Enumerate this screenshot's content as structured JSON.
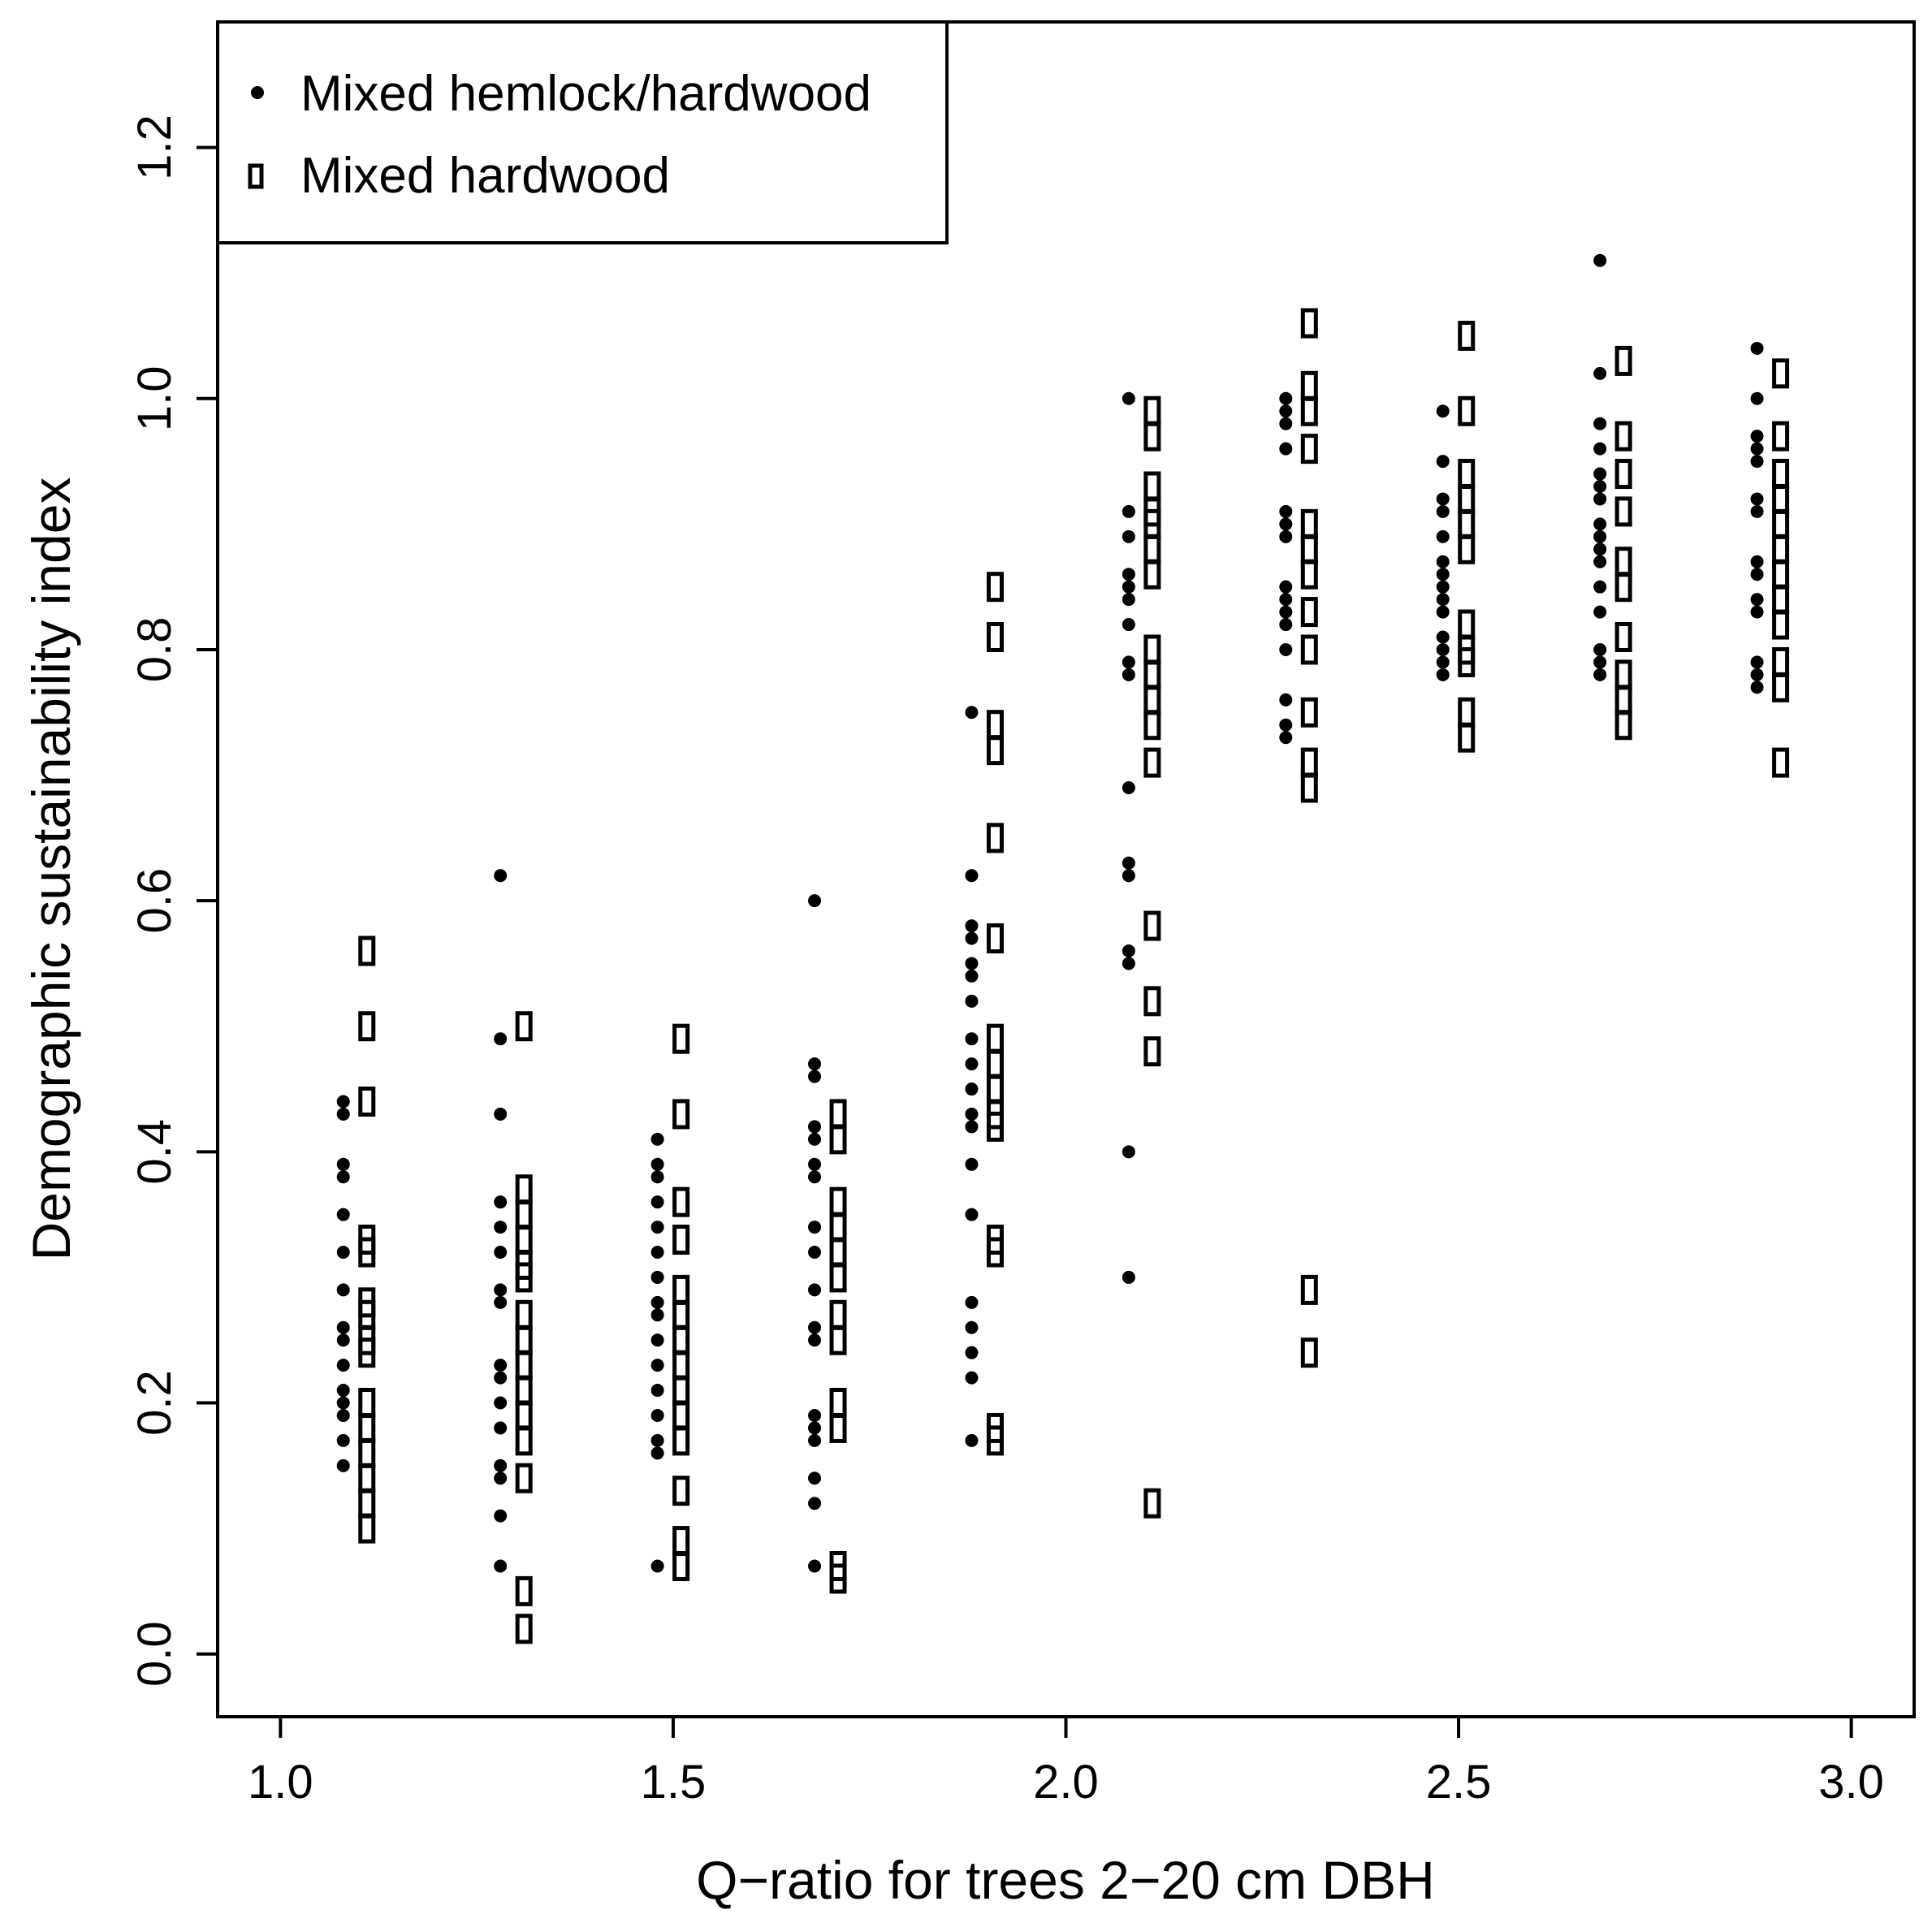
{
  "chart_data": {
    "type": "scatter",
    "title": "",
    "xlabel": "Q−ratio for trees 2−20 cm DBH",
    "ylabel": "Demographic sustainability index",
    "xlim": [
      0.92,
      3.08
    ],
    "ylim": [
      -0.05,
      1.3
    ],
    "x_ticks": [
      1.0,
      1.5,
      2.0,
      2.5,
      3.0
    ],
    "x_tick_labels": [
      "1.0",
      "1.5",
      "2.0",
      "2.5",
      "3.0"
    ],
    "y_ticks": [
      0.0,
      0.2,
      0.4,
      0.6,
      0.8,
      1.0,
      1.2
    ],
    "y_tick_labels": [
      "0.0",
      "0.2",
      "0.4",
      "0.6",
      "0.8",
      "1.0",
      "1.2"
    ],
    "grid": false,
    "legend": {
      "position": "top-left"
    },
    "series": [
      {
        "name": "Mixed hemlock/hardwood",
        "marker": "filled-circle",
        "color": "#000000",
        "points": [
          [
            1.08,
            0.44
          ],
          [
            1.08,
            0.43
          ],
          [
            1.08,
            0.39
          ],
          [
            1.08,
            0.38
          ],
          [
            1.08,
            0.35
          ],
          [
            1.08,
            0.32
          ],
          [
            1.08,
            0.29
          ],
          [
            1.08,
            0.26
          ],
          [
            1.08,
            0.25
          ],
          [
            1.08,
            0.23
          ],
          [
            1.08,
            0.21
          ],
          [
            1.08,
            0.2
          ],
          [
            1.08,
            0.19
          ],
          [
            1.08,
            0.17
          ],
          [
            1.08,
            0.15
          ],
          [
            1.28,
            0.62
          ],
          [
            1.28,
            0.49
          ],
          [
            1.28,
            0.43
          ],
          [
            1.28,
            0.36
          ],
          [
            1.28,
            0.34
          ],
          [
            1.28,
            0.32
          ],
          [
            1.28,
            0.29
          ],
          [
            1.28,
            0.28
          ],
          [
            1.28,
            0.23
          ],
          [
            1.28,
            0.22
          ],
          [
            1.28,
            0.2
          ],
          [
            1.28,
            0.18
          ],
          [
            1.28,
            0.15
          ],
          [
            1.28,
            0.14
          ],
          [
            1.28,
            0.11
          ],
          [
            1.28,
            0.07
          ],
          [
            1.48,
            0.41
          ],
          [
            1.48,
            0.39
          ],
          [
            1.48,
            0.38
          ],
          [
            1.48,
            0.36
          ],
          [
            1.48,
            0.34
          ],
          [
            1.48,
            0.32
          ],
          [
            1.48,
            0.3
          ],
          [
            1.48,
            0.28
          ],
          [
            1.48,
            0.27
          ],
          [
            1.48,
            0.25
          ],
          [
            1.48,
            0.23
          ],
          [
            1.48,
            0.21
          ],
          [
            1.48,
            0.19
          ],
          [
            1.48,
            0.17
          ],
          [
            1.48,
            0.16
          ],
          [
            1.48,
            0.07
          ],
          [
            1.68,
            0.6
          ],
          [
            1.68,
            0.47
          ],
          [
            1.68,
            0.46
          ],
          [
            1.68,
            0.42
          ],
          [
            1.68,
            0.41
          ],
          [
            1.68,
            0.39
          ],
          [
            1.68,
            0.38
          ],
          [
            1.68,
            0.34
          ],
          [
            1.68,
            0.32
          ],
          [
            1.68,
            0.29
          ],
          [
            1.68,
            0.26
          ],
          [
            1.68,
            0.25
          ],
          [
            1.68,
            0.19
          ],
          [
            1.68,
            0.18
          ],
          [
            1.68,
            0.17
          ],
          [
            1.68,
            0.14
          ],
          [
            1.68,
            0.12
          ],
          [
            1.68,
            0.07
          ],
          [
            1.88,
            0.75
          ],
          [
            1.88,
            0.62
          ],
          [
            1.88,
            0.58
          ],
          [
            1.88,
            0.57
          ],
          [
            1.88,
            0.55
          ],
          [
            1.88,
            0.54
          ],
          [
            1.88,
            0.52
          ],
          [
            1.88,
            0.49
          ],
          [
            1.88,
            0.47
          ],
          [
            1.88,
            0.45
          ],
          [
            1.88,
            0.43
          ],
          [
            1.88,
            0.42
          ],
          [
            1.88,
            0.39
          ],
          [
            1.88,
            0.35
          ],
          [
            1.88,
            0.28
          ],
          [
            1.88,
            0.26
          ],
          [
            1.88,
            0.24
          ],
          [
            1.88,
            0.22
          ],
          [
            1.88,
            0.17
          ],
          [
            2.08,
            1.0
          ],
          [
            2.08,
            0.91
          ],
          [
            2.08,
            0.89
          ],
          [
            2.08,
            0.86
          ],
          [
            2.08,
            0.85
          ],
          [
            2.08,
            0.84
          ],
          [
            2.08,
            0.82
          ],
          [
            2.08,
            0.79
          ],
          [
            2.08,
            0.78
          ],
          [
            2.08,
            0.69
          ],
          [
            2.08,
            0.63
          ],
          [
            2.08,
            0.62
          ],
          [
            2.08,
            0.56
          ],
          [
            2.08,
            0.55
          ],
          [
            2.08,
            0.4
          ],
          [
            2.08,
            0.3
          ],
          [
            2.28,
            1.0
          ],
          [
            2.28,
            0.99
          ],
          [
            2.28,
            0.98
          ],
          [
            2.28,
            0.96
          ],
          [
            2.28,
            0.91
          ],
          [
            2.28,
            0.9
          ],
          [
            2.28,
            0.89
          ],
          [
            2.28,
            0.85
          ],
          [
            2.28,
            0.84
          ],
          [
            2.28,
            0.83
          ],
          [
            2.28,
            0.82
          ],
          [
            2.28,
            0.8
          ],
          [
            2.28,
            0.76
          ],
          [
            2.28,
            0.74
          ],
          [
            2.28,
            0.73
          ],
          [
            2.48,
            0.99
          ],
          [
            2.48,
            0.95
          ],
          [
            2.48,
            0.92
          ],
          [
            2.48,
            0.91
          ],
          [
            2.48,
            0.89
          ],
          [
            2.48,
            0.87
          ],
          [
            2.48,
            0.86
          ],
          [
            2.48,
            0.85
          ],
          [
            2.48,
            0.84
          ],
          [
            2.48,
            0.83
          ],
          [
            2.48,
            0.81
          ],
          [
            2.48,
            0.8
          ],
          [
            2.48,
            0.79
          ],
          [
            2.48,
            0.78
          ],
          [
            2.68,
            1.11
          ],
          [
            2.68,
            1.02
          ],
          [
            2.68,
            0.98
          ],
          [
            2.68,
            0.96
          ],
          [
            2.68,
            0.94
          ],
          [
            2.68,
            0.93
          ],
          [
            2.68,
            0.92
          ],
          [
            2.68,
            0.9
          ],
          [
            2.68,
            0.89
          ],
          [
            2.68,
            0.88
          ],
          [
            2.68,
            0.87
          ],
          [
            2.68,
            0.85
          ],
          [
            2.68,
            0.83
          ],
          [
            2.68,
            0.8
          ],
          [
            2.68,
            0.79
          ],
          [
            2.68,
            0.78
          ],
          [
            2.88,
            1.04
          ],
          [
            2.88,
            1.0
          ],
          [
            2.88,
            0.97
          ],
          [
            2.88,
            0.96
          ],
          [
            2.88,
            0.95
          ],
          [
            2.88,
            0.92
          ],
          [
            2.88,
            0.91
          ],
          [
            2.88,
            0.87
          ],
          [
            2.88,
            0.86
          ],
          [
            2.88,
            0.84
          ],
          [
            2.88,
            0.83
          ],
          [
            2.88,
            0.79
          ],
          [
            2.88,
            0.78
          ],
          [
            2.88,
            0.77
          ]
        ]
      },
      {
        "name": "Mixed hardwood",
        "marker": "open-rectangle",
        "color": "#000000",
        "points": [
          [
            1.11,
            0.56
          ],
          [
            1.11,
            0.5
          ],
          [
            1.11,
            0.44
          ],
          [
            1.11,
            0.33
          ],
          [
            1.11,
            0.32
          ],
          [
            1.11,
            0.28
          ],
          [
            1.11,
            0.27
          ],
          [
            1.11,
            0.25
          ],
          [
            1.11,
            0.24
          ],
          [
            1.11,
            0.2
          ],
          [
            1.11,
            0.18
          ],
          [
            1.11,
            0.16
          ],
          [
            1.11,
            0.14
          ],
          [
            1.11,
            0.12
          ],
          [
            1.11,
            0.1
          ],
          [
            1.31,
            0.5
          ],
          [
            1.31,
            0.37
          ],
          [
            1.31,
            0.35
          ],
          [
            1.31,
            0.33
          ],
          [
            1.31,
            0.31
          ],
          [
            1.31,
            0.3
          ],
          [
            1.31,
            0.27
          ],
          [
            1.31,
            0.25
          ],
          [
            1.31,
            0.23
          ],
          [
            1.31,
            0.21
          ],
          [
            1.31,
            0.19
          ],
          [
            1.31,
            0.17
          ],
          [
            1.31,
            0.14
          ],
          [
            1.31,
            0.05
          ],
          [
            1.31,
            0.02
          ],
          [
            1.51,
            0.49
          ],
          [
            1.51,
            0.43
          ],
          [
            1.51,
            0.36
          ],
          [
            1.51,
            0.33
          ],
          [
            1.51,
            0.29
          ],
          [
            1.51,
            0.27
          ],
          [
            1.51,
            0.25
          ],
          [
            1.51,
            0.23
          ],
          [
            1.51,
            0.21
          ],
          [
            1.51,
            0.19
          ],
          [
            1.51,
            0.17
          ],
          [
            1.51,
            0.13
          ],
          [
            1.51,
            0.09
          ],
          [
            1.51,
            0.07
          ],
          [
            1.71,
            0.43
          ],
          [
            1.71,
            0.41
          ],
          [
            1.71,
            0.36
          ],
          [
            1.71,
            0.34
          ],
          [
            1.71,
            0.32
          ],
          [
            1.71,
            0.3
          ],
          [
            1.71,
            0.27
          ],
          [
            1.71,
            0.25
          ],
          [
            1.71,
            0.2
          ],
          [
            1.71,
            0.18
          ],
          [
            1.71,
            0.07
          ],
          [
            1.71,
            0.06
          ],
          [
            1.91,
            0.85
          ],
          [
            1.91,
            0.81
          ],
          [
            1.91,
            0.74
          ],
          [
            1.91,
            0.72
          ],
          [
            1.91,
            0.65
          ],
          [
            1.91,
            0.57
          ],
          [
            1.91,
            0.49
          ],
          [
            1.91,
            0.47
          ],
          [
            1.91,
            0.45
          ],
          [
            1.91,
            0.43
          ],
          [
            1.91,
            0.42
          ],
          [
            1.91,
            0.33
          ],
          [
            1.91,
            0.32
          ],
          [
            1.91,
            0.18
          ],
          [
            1.91,
            0.17
          ],
          [
            2.11,
            0.99
          ],
          [
            2.11,
            0.97
          ],
          [
            2.11,
            0.93
          ],
          [
            2.11,
            0.91
          ],
          [
            2.11,
            0.9
          ],
          [
            2.11,
            0.88
          ],
          [
            2.11,
            0.86
          ],
          [
            2.11,
            0.8
          ],
          [
            2.11,
            0.78
          ],
          [
            2.11,
            0.76
          ],
          [
            2.11,
            0.74
          ],
          [
            2.11,
            0.71
          ],
          [
            2.11,
            0.58
          ],
          [
            2.11,
            0.52
          ],
          [
            2.11,
            0.48
          ],
          [
            2.11,
            0.12
          ],
          [
            2.31,
            1.06
          ],
          [
            2.31,
            1.01
          ],
          [
            2.31,
            0.99
          ],
          [
            2.31,
            0.96
          ],
          [
            2.31,
            0.9
          ],
          [
            2.31,
            0.88
          ],
          [
            2.31,
            0.86
          ],
          [
            2.31,
            0.83
          ],
          [
            2.31,
            0.8
          ],
          [
            2.31,
            0.75
          ],
          [
            2.31,
            0.71
          ],
          [
            2.31,
            0.69
          ],
          [
            2.31,
            0.29
          ],
          [
            2.31,
            0.24
          ],
          [
            2.51,
            1.05
          ],
          [
            2.51,
            0.99
          ],
          [
            2.51,
            0.94
          ],
          [
            2.51,
            0.92
          ],
          [
            2.51,
            0.9
          ],
          [
            2.51,
            0.88
          ],
          [
            2.51,
            0.82
          ],
          [
            2.51,
            0.8
          ],
          [
            2.51,
            0.79
          ],
          [
            2.51,
            0.75
          ],
          [
            2.51,
            0.73
          ],
          [
            2.71,
            1.03
          ],
          [
            2.71,
            0.97
          ],
          [
            2.71,
            0.94
          ],
          [
            2.71,
            0.91
          ],
          [
            2.71,
            0.87
          ],
          [
            2.71,
            0.85
          ],
          [
            2.71,
            0.81
          ],
          [
            2.71,
            0.78
          ],
          [
            2.71,
            0.76
          ],
          [
            2.71,
            0.74
          ],
          [
            2.91,
            1.02
          ],
          [
            2.91,
            0.97
          ],
          [
            2.91,
            0.94
          ],
          [
            2.91,
            0.92
          ],
          [
            2.91,
            0.9
          ],
          [
            2.91,
            0.88
          ],
          [
            2.91,
            0.86
          ],
          [
            2.91,
            0.84
          ],
          [
            2.91,
            0.82
          ],
          [
            2.91,
            0.79
          ],
          [
            2.91,
            0.77
          ],
          [
            2.91,
            0.71
          ]
        ]
      }
    ]
  }
}
